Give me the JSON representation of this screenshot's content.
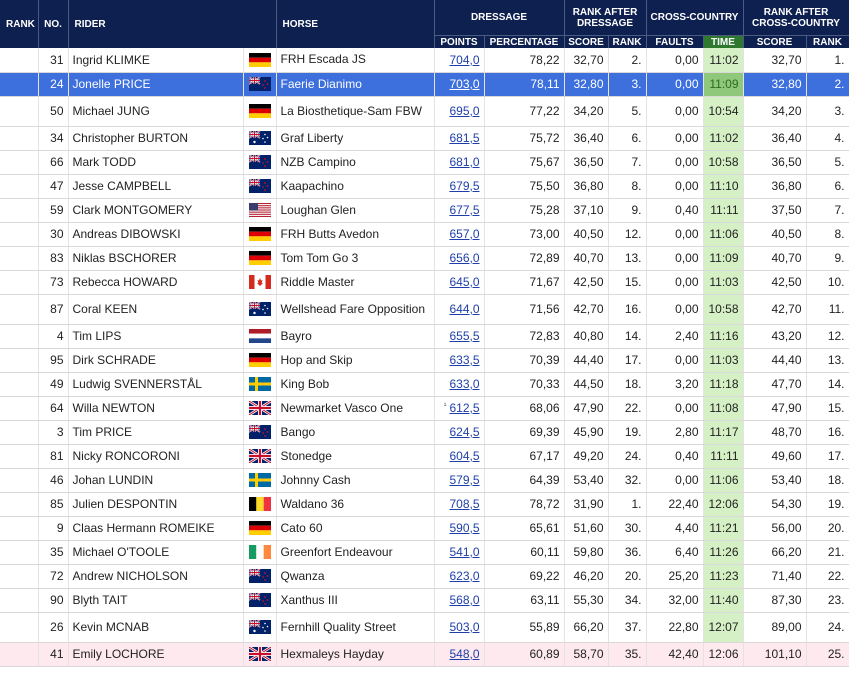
{
  "header": {
    "rank": "RANK",
    "no": "NO.",
    "rider": "RIDER",
    "horse": "HORSE",
    "dressage": "DRESSAGE",
    "rank_after_dressage": "RANK AFTER DRESSAGE",
    "cross_country": "CROSS-COUNTRY",
    "rank_after_xc": "RANK AFTER CROSS-COUNTRY",
    "points": "POINTS",
    "percentage": "PERCENTAGE",
    "score": "SCORE",
    "rank_sub": "RANK",
    "faults": "FAULTS",
    "time": "TIME",
    "score2": "SCORE",
    "rank2": "RANK"
  },
  "rows": [
    {
      "rank": "",
      "no": "31",
      "rider": "Ingrid KLIMKE",
      "flag": "GER",
      "horse": "FRH Escada JS",
      "points": "704,0",
      "pct": "78,22",
      "score": "32,70",
      "rankd": "2.",
      "faults": "0,00",
      "time": "11:02",
      "score2": "32,70",
      "rank2": "1."
    },
    {
      "rank": "",
      "no": "24",
      "rider": "Jonelle PRICE",
      "flag": "NZL",
      "horse": "Faerie Dianimo",
      "points": "703,0",
      "pct": "78,11",
      "score": "32,80",
      "rankd": "3.",
      "faults": "0,00",
      "time": "11:09",
      "score2": "32,80",
      "rank2": "2."
    },
    {
      "rank": "",
      "no": "50",
      "rider": "Michael JUNG",
      "flag": "GER",
      "horse": "La Biosthetique-Sam FBW",
      "points": "695,0",
      "pct": "77,22",
      "score": "34,20",
      "rankd": "5.",
      "faults": "0,00",
      "time": "10:54",
      "score2": "34,20",
      "rank2": "3."
    },
    {
      "rank": "",
      "no": "34",
      "rider": "Christopher BURTON",
      "flag": "AUS",
      "horse": "Graf Liberty",
      "points": "681,5",
      "pct": "75,72",
      "score": "36,40",
      "rankd": "6.",
      "faults": "0,00",
      "time": "11:02",
      "score2": "36,40",
      "rank2": "4."
    },
    {
      "rank": "",
      "no": "66",
      "rider": "Mark TODD",
      "flag": "NZL",
      "horse": "NZB Campino",
      "points": "681,0",
      "pct": "75,67",
      "score": "36,50",
      "rankd": "7.",
      "faults": "0,00",
      "time": "10:58",
      "score2": "36,50",
      "rank2": "5."
    },
    {
      "rank": "",
      "no": "47",
      "rider": "Jesse CAMPBELL",
      "flag": "NZL",
      "horse": "Kaapachino",
      "points": "679,5",
      "pct": "75,50",
      "score": "36,80",
      "rankd": "8.",
      "faults": "0,00",
      "time": "11:10",
      "score2": "36,80",
      "rank2": "6."
    },
    {
      "rank": "",
      "no": "59",
      "rider": "Clark MONTGOMERY",
      "flag": "USA",
      "horse": "Loughan Glen",
      "points": "677,5",
      "pct": "75,28",
      "score": "37,10",
      "rankd": "9.",
      "faults": "0,40",
      "time": "11:11",
      "score2": "37,50",
      "rank2": "7."
    },
    {
      "rank": "",
      "no": "30",
      "rider": "Andreas DIBOWSKI",
      "flag": "GER",
      "horse": "FRH Butts Avedon",
      "points": "657,0",
      "pct": "73,00",
      "score": "40,50",
      "rankd": "12.",
      "faults": "0,00",
      "time": "11:06",
      "score2": "40,50",
      "rank2": "8."
    },
    {
      "rank": "",
      "no": "83",
      "rider": "Niklas BSCHORER",
      "flag": "GER",
      "horse": "Tom Tom Go 3",
      "points": "656,0",
      "pct": "72,89",
      "score": "40,70",
      "rankd": "13.",
      "faults": "0,00",
      "time": "11:09",
      "score2": "40,70",
      "rank2": "9."
    },
    {
      "rank": "",
      "no": "73",
      "rider": "Rebecca HOWARD",
      "flag": "CAN",
      "horse": "Riddle Master",
      "points": "645,0",
      "pct": "71,67",
      "score": "42,50",
      "rankd": "15.",
      "faults": "0,00",
      "time": "11:03",
      "score2": "42,50",
      "rank2": "10."
    },
    {
      "rank": "",
      "no": "87",
      "rider": "Coral KEEN",
      "flag": "AUS",
      "horse": "Wellshead Fare Opposition",
      "points": "644,0",
      "pct": "71,56",
      "score": "42,70",
      "rankd": "16.",
      "faults": "0,00",
      "time": "10:58",
      "score2": "42,70",
      "rank2": "11."
    },
    {
      "rank": "",
      "no": "4",
      "rider": "Tim LIPS",
      "flag": "NED",
      "horse": "Bayro",
      "points": "655,5",
      "pct": "72,83",
      "score": "40,80",
      "rankd": "14.",
      "faults": "2,40",
      "time": "11:16",
      "score2": "43,20",
      "rank2": "12."
    },
    {
      "rank": "",
      "no": "95",
      "rider": "Dirk SCHRADE",
      "flag": "GER",
      "horse": "Hop and Skip",
      "points": "633,5",
      "pct": "70,39",
      "score": "44,40",
      "rankd": "17.",
      "faults": "0,00",
      "time": "11:03",
      "score2": "44,40",
      "rank2": "13."
    },
    {
      "rank": "",
      "no": "49",
      "rider": "Ludwig SVENNERSTÅL",
      "flag": "SWE",
      "horse": "King Bob",
      "points": "633,0",
      "pct": "70,33",
      "score": "44,50",
      "rankd": "18.",
      "faults": "3,20",
      "time": "11:18",
      "score2": "47,70",
      "rank2": "14."
    },
    {
      "rank": "",
      "no": "64",
      "rider": "Willa NEWTON",
      "flag": "GBR",
      "horse": "Newmarket Vasco One",
      "mark": "¹",
      "points": "612,5",
      "pct": "68,06",
      "score": "47,90",
      "rankd": "22.",
      "faults": "0,00",
      "time": "11:08",
      "score2": "47,90",
      "rank2": "15."
    },
    {
      "rank": "",
      "no": "3",
      "rider": "Tim PRICE",
      "flag": "NZL",
      "horse": "Bango",
      "points": "624,5",
      "pct": "69,39",
      "score": "45,90",
      "rankd": "19.",
      "faults": "2,80",
      "time": "11:17",
      "score2": "48,70",
      "rank2": "16."
    },
    {
      "rank": "",
      "no": "81",
      "rider": "Nicky RONCORONI",
      "flag": "GBR",
      "horse": "Stonedge",
      "points": "604,5",
      "pct": "67,17",
      "score": "49,20",
      "rankd": "24.",
      "faults": "0,40",
      "time": "11:11",
      "score2": "49,60",
      "rank2": "17."
    },
    {
      "rank": "",
      "no": "46",
      "rider": "Johan LUNDIN",
      "flag": "SWE",
      "horse": "Johnny Cash",
      "points": "579,5",
      "pct": "64,39",
      "score": "53,40",
      "rankd": "32.",
      "faults": "0,00",
      "time": "11:06",
      "score2": "53,40",
      "rank2": "18."
    },
    {
      "rank": "",
      "no": "85",
      "rider": "Julien DESPONTIN",
      "flag": "BEL",
      "horse": "Waldano 36",
      "points": "708,5",
      "pct": "78,72",
      "score": "31,90",
      "rankd": "1.",
      "faults": "22,40",
      "time": "12:06",
      "score2": "54,30",
      "rank2": "19."
    },
    {
      "rank": "",
      "no": "9",
      "rider": "Claas Hermann ROMEIKE",
      "flag": "GER",
      "horse": "Cato 60",
      "points": "590,5",
      "pct": "65,61",
      "score": "51,60",
      "rankd": "30.",
      "faults": "4,40",
      "time": "11:21",
      "score2": "56,00",
      "rank2": "20."
    },
    {
      "rank": "",
      "no": "35",
      "rider": "Michael O'TOOLE",
      "flag": "IRL",
      "horse": "Greenfort Endeavour",
      "points": "541,0",
      "pct": "60,11",
      "score": "59,80",
      "rankd": "36.",
      "faults": "6,40",
      "time": "11:26",
      "score2": "66,20",
      "rank2": "21."
    },
    {
      "rank": "",
      "no": "72",
      "rider": "Andrew NICHOLSON",
      "flag": "NZL",
      "horse": "Qwanza",
      "points": "623,0",
      "pct": "69,22",
      "score": "46,20",
      "rankd": "20.",
      "faults": "25,20",
      "time": "11:23",
      "score2": "71,40",
      "rank2": "22."
    },
    {
      "rank": "",
      "no": "90",
      "rider": "Blyth TAIT",
      "flag": "NZL",
      "horse": "Xanthus III",
      "points": "568,0",
      "pct": "63,11",
      "score": "55,30",
      "rankd": "34.",
      "faults": "32,00",
      "time": "11:40",
      "score2": "87,30",
      "rank2": "23."
    },
    {
      "rank": "",
      "no": "26",
      "rider": "Kevin MCNAB",
      "flag": "AUS",
      "horse": "Fernhill Quality Street",
      "points": "503,0",
      "pct": "55,89",
      "score": "66,20",
      "rankd": "37.",
      "faults": "22,80",
      "time": "12:07",
      "score2": "89,00",
      "rank2": "24."
    },
    {
      "rank": "",
      "no": "41",
      "rider": "Emily LOCHORE",
      "flag": "GBR",
      "horse": "Hexmaleys Hayday",
      "points": "548,0",
      "pct": "60,89",
      "score": "58,70",
      "rankd": "35.",
      "faults": "42,40",
      "time": "12:06",
      "score2": "101,10",
      "rank2": "25."
    }
  ]
}
